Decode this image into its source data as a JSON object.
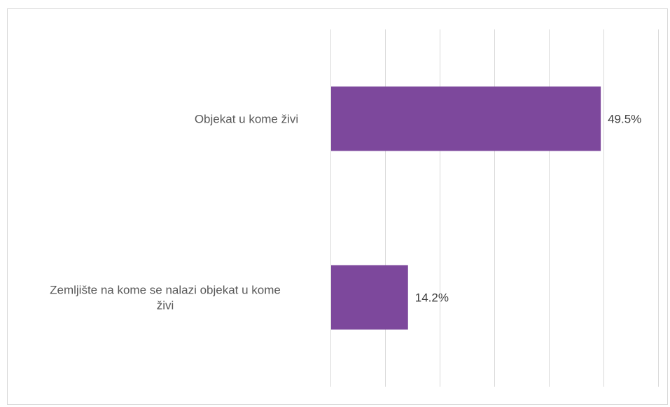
{
  "chart_data": {
    "type": "bar",
    "orientation": "horizontal",
    "categories": [
      "Objekat u kome živi",
      "Zemljište na kome se nalazi objekat u kome živi"
    ],
    "category_lines": [
      [
        "Objekat u kome živi"
      ],
      [
        "Zemljište na kome se nalazi objekat u kome",
        "živi"
      ]
    ],
    "values": [
      49.5,
      14.2
    ],
    "value_labels": [
      "49.5%",
      "14.2%"
    ],
    "unit": "%",
    "xlim": [
      0,
      60
    ],
    "gridlines": true,
    "legend": "none",
    "bar_color": "#7D489C"
  }
}
